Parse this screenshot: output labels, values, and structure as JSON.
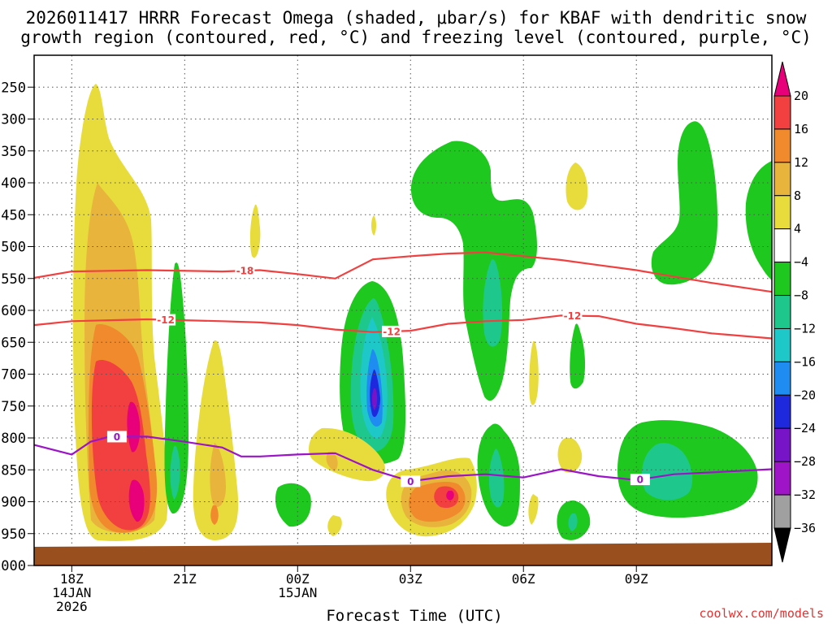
{
  "chart_data": {
    "type": "heatmap",
    "title_line1": "2026011417 HRRR Forecast Omega (shaded, μbar/s) for KBAF with dendritic snow",
    "title_line2": "growth region (contoured, red, °C) and freezing level (contoured, purple, °C)",
    "xlabel": "Forecast Time (UTC)",
    "ylabel": "",
    "credit": "coolwx.com/models",
    "y_axis": {
      "unit": "hPa",
      "range": [
        1000,
        200
      ],
      "ticks": [
        250,
        300,
        350,
        400,
        450,
        500,
        550,
        600,
        650,
        700,
        750,
        800,
        850,
        900,
        950,
        1000
      ]
    },
    "x_axis": {
      "unit": "hours since 18Z 14JAN",
      "range": [
        -1,
        18.6
      ],
      "ticks": [
        {
          "hour": 0,
          "label": "18Z",
          "sub1": "14JAN",
          "sub2": "2026"
        },
        {
          "hour": 3,
          "label": "21Z",
          "sub1": "",
          "sub2": ""
        },
        {
          "hour": 6,
          "label": "00Z",
          "sub1": "15JAN",
          "sub2": ""
        },
        {
          "hour": 9,
          "label": "03Z",
          "sub1": "",
          "sub2": ""
        },
        {
          "hour": 12,
          "label": "06Z",
          "sub1": "",
          "sub2": ""
        },
        {
          "hour": 15,
          "label": "09Z",
          "sub1": "",
          "sub2": ""
        }
      ]
    },
    "colorbar": {
      "levels": [
        {
          "label": "20",
          "color": "#e8007a"
        },
        {
          "label": "16",
          "color": "#f24040"
        },
        {
          "label": "12",
          "color": "#f08a2c"
        },
        {
          "label": "8",
          "color": "#e8b43c"
        },
        {
          "label": "4",
          "color": "#e8dc3c"
        },
        {
          "label": "−4",
          "color": "#ffffff"
        },
        {
          "label": "−8",
          "color": "#1ec81e"
        },
        {
          "label": "−12",
          "color": "#1ec88c"
        },
        {
          "label": "−16",
          "color": "#1ec8c8"
        },
        {
          "label": "−20",
          "color": "#1e8cf0"
        },
        {
          "label": "−24",
          "color": "#1e28dc"
        },
        {
          "label": "−28",
          "color": "#7814c8"
        },
        {
          "label": "−32",
          "color": "#a014c8"
        },
        {
          "label": "−36",
          "color": "#a0a0a0"
        }
      ],
      "bottom_color": "#000000"
    },
    "series": [
      {
        "name": "-18 °C isotherm",
        "color": "#f04040",
        "label": "-18",
        "points": [
          [
            -1,
            549
          ],
          [
            0,
            539
          ],
          [
            2,
            537
          ],
          [
            4,
            539
          ],
          [
            5,
            537
          ],
          [
            6,
            543
          ],
          [
            7,
            550
          ],
          [
            8,
            520
          ],
          [
            9,
            515
          ],
          [
            10,
            511
          ],
          [
            11,
            509
          ],
          [
            12,
            515
          ],
          [
            13,
            521
          ],
          [
            14,
            529
          ],
          [
            15,
            537
          ],
          [
            16,
            547
          ],
          [
            17,
            557
          ],
          [
            18.6,
            571
          ]
        ]
      },
      {
        "name": "-12 °C isotherm",
        "color": "#f04040",
        "label": "-12",
        "points": [
          [
            -1,
            623
          ],
          [
            0,
            617
          ],
          [
            2,
            614
          ],
          [
            4,
            617
          ],
          [
            5,
            619
          ],
          [
            6,
            623
          ],
          [
            7,
            630
          ],
          [
            8,
            634
          ],
          [
            9,
            632
          ],
          [
            10,
            621
          ],
          [
            11,
            617
          ],
          [
            12,
            615
          ],
          [
            13,
            608
          ],
          [
            14,
            609
          ],
          [
            15,
            621
          ],
          [
            16,
            628
          ],
          [
            17,
            636
          ],
          [
            18.6,
            644
          ]
        ]
      },
      {
        "name": "0 °C freezing level",
        "color": "#9b14c8",
        "label": "0",
        "points": [
          [
            -1,
            811
          ],
          [
            0,
            826
          ],
          [
            0.5,
            806
          ],
          [
            1,
            798
          ],
          [
            2,
            798
          ],
          [
            3,
            806
          ],
          [
            4,
            815
          ],
          [
            4.5,
            829
          ],
          [
            5,
            829
          ],
          [
            6,
            826
          ],
          [
            7,
            824
          ],
          [
            8,
            850
          ],
          [
            9,
            868
          ],
          [
            10,
            860
          ],
          [
            11,
            857
          ],
          [
            12,
            862
          ],
          [
            13,
            849
          ],
          [
            14,
            860
          ],
          [
            15,
            866
          ],
          [
            16,
            857
          ],
          [
            17,
            854
          ],
          [
            18.6,
            849
          ]
        ]
      }
    ]
  }
}
